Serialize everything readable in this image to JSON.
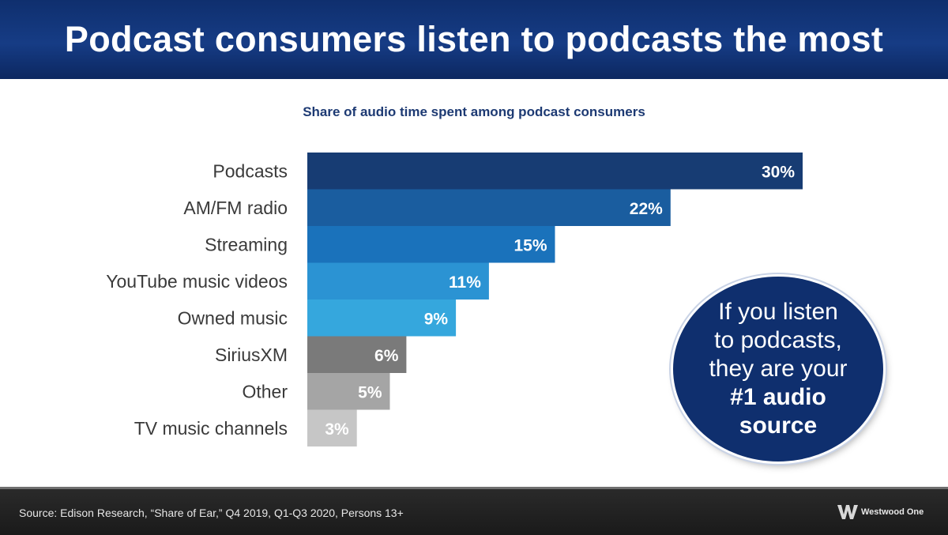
{
  "header": {
    "title": "Podcast consumers listen to podcasts the most"
  },
  "chart_data": {
    "type": "bar",
    "orientation": "horizontal",
    "subtitle": "Share of audio time spent among podcast consumers",
    "categories": [
      "Podcasts",
      "AM/FM radio",
      "Streaming",
      "YouTube music videos",
      "Owned music",
      "SiriusXM",
      "Other",
      "TV music channels"
    ],
    "values": [
      30,
      22,
      15,
      11,
      9,
      6,
      5,
      3
    ],
    "value_labels": [
      "30%",
      "22%",
      "15%",
      "11%",
      "9%",
      "6%",
      "5%",
      "3%"
    ],
    "unit": "%",
    "colors": [
      "#173c73",
      "#1a5d9f",
      "#1a72bb",
      "#2b93d3",
      "#35a7dd",
      "#7a7a7a",
      "#a5a5a5",
      "#c6c6c6"
    ],
    "grid": false,
    "legend": "none"
  },
  "callout": {
    "line1": "If you listen",
    "line2": "to podcasts,",
    "line3": "they are your",
    "line4": "#1 audio",
    "line5": "source"
  },
  "footer": {
    "source": "Source: Edison Research, “Share of Ear,” Q4 2019, Q1-Q3 2020, Persons 13+",
    "logo_text": "Westwood One"
  }
}
